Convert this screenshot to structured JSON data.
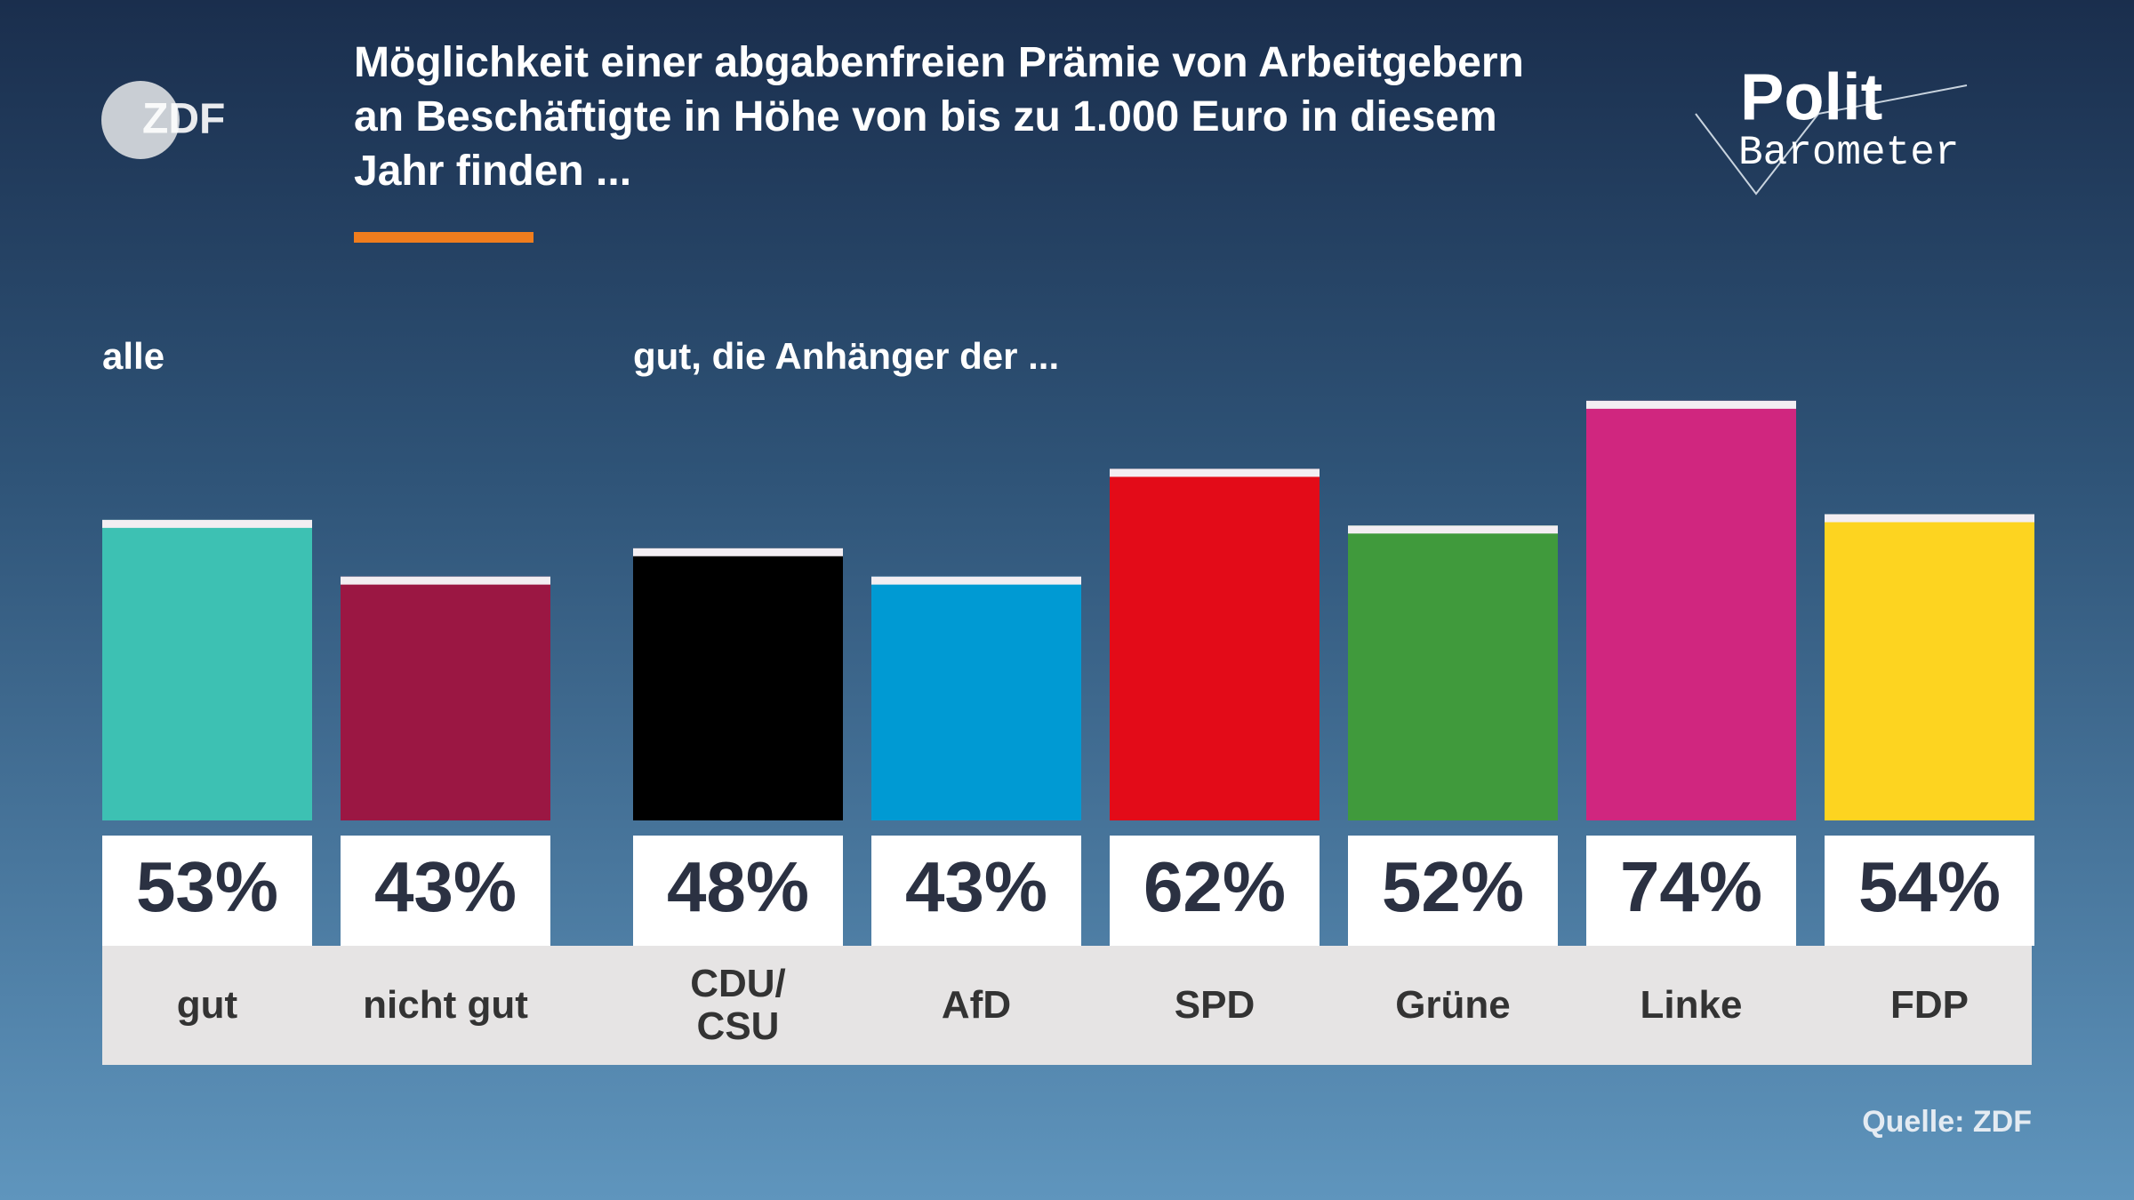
{
  "chart_data": {
    "type": "bar",
    "brand": "ZDF",
    "title": "Möglichkeit einer abgabenfreien Prämie von Arbeitgebern an Beschäftigte in Höhe von bis zu 1.000 Euro in diesem Jahr finden ...",
    "program": [
      "Polit",
      "Barometer"
    ],
    "groups": [
      {
        "name": "alle",
        "categories": [
          "gut",
          "nicht gut"
        ],
        "values": [
          53,
          43
        ],
        "value_labels": [
          "53%",
          "43%"
        ],
        "colors": [
          "#3dc1b3",
          "#9b1743"
        ]
      },
      {
        "name": "gut, die Anhänger der ...",
        "categories": [
          "CDU/ CSU",
          "AfD",
          "SPD",
          "Grüne",
          "Linke",
          "FDP"
        ],
        "values": [
          48,
          43,
          62,
          52,
          74,
          54
        ],
        "value_labels": [
          "48%",
          "43%",
          "62%",
          "52%",
          "74%",
          "54%"
        ],
        "colors": [
          "#000000",
          "#009ad3",
          "#e30b18",
          "#409a3c",
          "#d0267f",
          "#fdd420"
        ]
      }
    ],
    "source": "Quelle: ZDF"
  }
}
